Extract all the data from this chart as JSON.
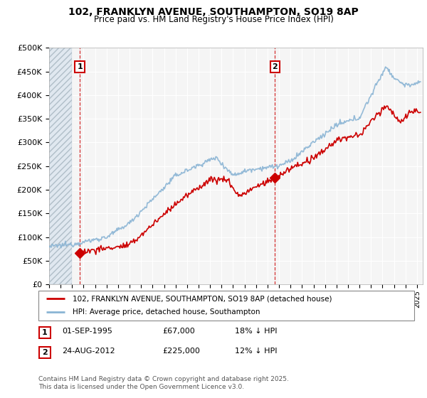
{
  "title_line1": "102, FRANKLYN AVENUE, SOUTHAMPTON, SO19 8AP",
  "title_line2": "Price paid vs. HM Land Registry's House Price Index (HPI)",
  "ylim": [
    0,
    500000
  ],
  "xlim_start": 1993.0,
  "xlim_end": 2025.5,
  "plot_bg_color": "#f5f5f5",
  "grid_color": "#ffffff",
  "hpi_color": "#8ab4d4",
  "price_color": "#cc0000",
  "purchase1_x": 1995.67,
  "purchase1_y": 67000,
  "purchase2_x": 2012.65,
  "purchase2_y": 225000,
  "legend_line1": "102, FRANKLYN AVENUE, SOUTHAMPTON, SO19 8AP (detached house)",
  "legend_line2": "HPI: Average price, detached house, Southampton",
  "table_row1": [
    "1",
    "01-SEP-1995",
    "£67,000",
    "18% ↓ HPI"
  ],
  "table_row2": [
    "2",
    "24-AUG-2012",
    "£225,000",
    "12% ↓ HPI"
  ],
  "footnote": "Contains HM Land Registry data © Crown copyright and database right 2025.\nThis data is licensed under the Open Government Licence v3.0.",
  "yticks": [
    0,
    50000,
    100000,
    150000,
    200000,
    250000,
    300000,
    350000,
    400000,
    450000,
    500000
  ],
  "ytick_labels": [
    "£0",
    "£50K",
    "£100K",
    "£150K",
    "£200K",
    "£250K",
    "£300K",
    "£350K",
    "£400K",
    "£450K",
    "£500K"
  ]
}
